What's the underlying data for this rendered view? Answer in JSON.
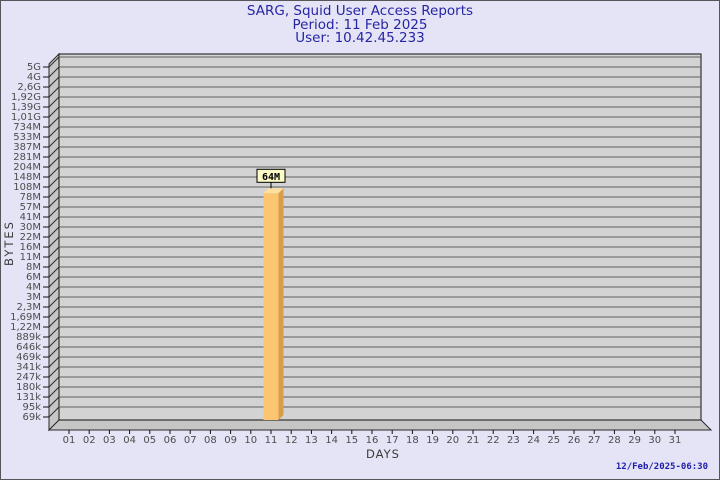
{
  "header": {
    "title": "SARG, Squid User Access Reports",
    "period": "Period: 11 Feb 2025",
    "user": "User: 10.42.45.233"
  },
  "footer": {
    "timestamp": "12/Feb/2025-06:30"
  },
  "chart_data": {
    "type": "bar",
    "title": "SARG, Squid User Access Reports",
    "subtitle": [
      "Period: 11 Feb 2025",
      "User: 10.42.45.233"
    ],
    "xlabel": "DAYS",
    "ylabel": "BYTES",
    "y_scale": "logarithmic",
    "x_tick_labels": [
      "01",
      "02",
      "03",
      "04",
      "05",
      "06",
      "07",
      "08",
      "09",
      "10",
      "11",
      "12",
      "13",
      "14",
      "15",
      "16",
      "17",
      "18",
      "19",
      "20",
      "21",
      "22",
      "23",
      "24",
      "25",
      "26",
      "27",
      "28",
      "29",
      "30",
      "31"
    ],
    "y_tick_labels": [
      "5G",
      "4G",
      "2,6G",
      "1,92G",
      "1,39G",
      "1,01G",
      "734M",
      "533M",
      "387M",
      "281M",
      "204M",
      "148M",
      "108M",
      "78M",
      "57M",
      "41M",
      "30M",
      "22M",
      "16M",
      "11M",
      "8M",
      "6M",
      "4M",
      "3M",
      "2,3M",
      "1,69M",
      "1,22M",
      "889k",
      "646k",
      "469k",
      "341k",
      "247k",
      "180k",
      "131k",
      "95k",
      "69k"
    ],
    "bars": [
      {
        "x": "11",
        "value_label": "64M",
        "value_bytes": 64000000
      }
    ],
    "legend": null,
    "grid": "horizontal",
    "colors": {
      "page_bg": "#E4E4F6",
      "plot_bg": "#D3D3D3",
      "grid_line": "#5F5F5F",
      "wall_fill": "#C6C6C6",
      "wall_line": "#2A2A2A",
      "axis_line": "#111111",
      "tick_text": "#4D4D4D",
      "axis_title_text": "#3A3A3A",
      "title_text": "#2725A3",
      "timestamp_text": "#1E1CA8",
      "bar_face": "#FCC671",
      "bar_side": "#D79D4B",
      "bar_top": "#FFDFA0",
      "annotation_bg": "#FBFBC6",
      "annotation_border": "#000000",
      "annotation_text": "#000000"
    }
  }
}
